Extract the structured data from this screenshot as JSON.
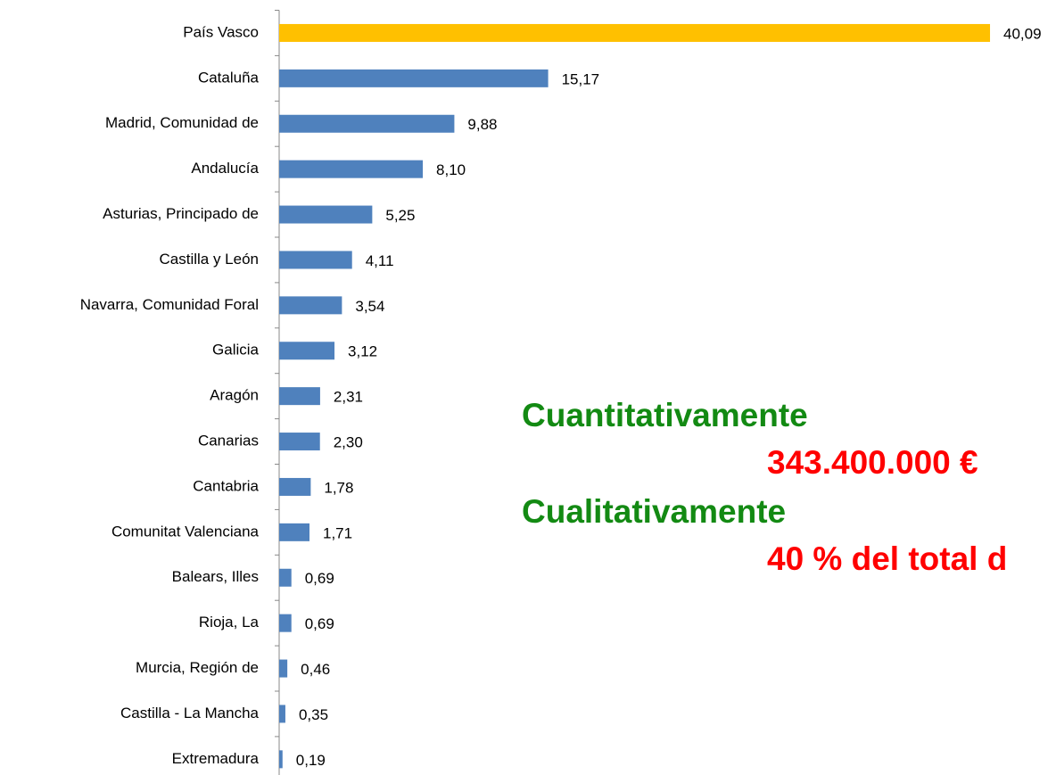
{
  "chart_data": {
    "type": "hbar",
    "categories": [
      "País Vasco",
      "Cataluña",
      "Madrid, Comunidad de",
      "Andalucía",
      "Asturias, Principado de",
      "Castilla y León",
      "Navarra, Comunidad Foral",
      "Galicia",
      "Aragón",
      "Canarias",
      "Cantabria",
      "Comunitat Valenciana",
      "Balears, Illes",
      "Rioja, La",
      "Murcia, Región de",
      "Castilla - La Mancha",
      "Extremadura"
    ],
    "values": [
      40.09,
      15.17,
      9.88,
      8.1,
      5.25,
      4.11,
      3.54,
      3.12,
      2.31,
      2.3,
      1.78,
      1.71,
      0.69,
      0.69,
      0.46,
      0.35,
      0.19
    ],
    "value_labels": [
      "40,09",
      "15,17",
      "9,88",
      "8,10",
      "5,25",
      "4,11",
      "3,54",
      "3,12",
      "2,31",
      "2,30",
      "1,78",
      "1,71",
      "0,69",
      "0,69",
      "0,46",
      "0,35",
      "0,19"
    ],
    "colors": [
      "#ffc000",
      "#4f81bd",
      "#4f81bd",
      "#4f81bd",
      "#4f81bd",
      "#4f81bd",
      "#4f81bd",
      "#4f81bd",
      "#4f81bd",
      "#4f81bd",
      "#4f81bd",
      "#4f81bd",
      "#4f81bd",
      "#4f81bd",
      "#4f81bd",
      "#4f81bd",
      "#4f81bd"
    ],
    "xlim": [
      0,
      42
    ],
    "annotations": [
      "Cuantitativamente",
      "343.400.000 €",
      "Cualitativamente",
      "40 % del total d"
    ]
  }
}
